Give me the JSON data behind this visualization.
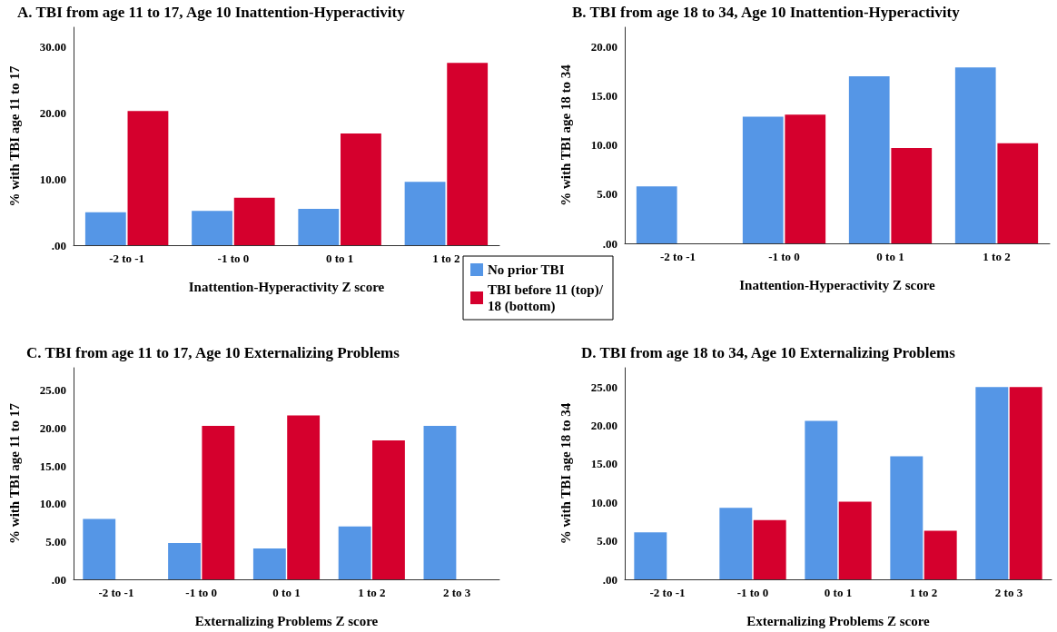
{
  "chart_data": [
    {
      "type": "bar",
      "title": "A. TBI from age 11 to 17, Age 10 Inattention-Hyperactivity",
      "xlabel": "Inattention-Hyperactivity Z score",
      "ylabel": "% with TBI age 11 to 17",
      "categories": [
        "-2 to -1",
        "-1 to 0",
        "0 to 1",
        "1 to 2"
      ],
      "series": [
        {
          "name": "No prior TBI",
          "color": "#5596e6",
          "values": [
            5.0,
            5.2,
            5.5,
            9.6
          ]
        },
        {
          "name": "TBI before 11 (top)/18 (bottom)",
          "color": "#d5002d",
          "values": [
            20.3,
            7.2,
            16.9,
            27.6
          ]
        }
      ],
      "ylim": [
        0,
        33
      ],
      "yticks": [
        {
          "value": 0,
          "label": ".00"
        },
        {
          "value": 10,
          "label": "10.00"
        },
        {
          "value": 20,
          "label": "20.00"
        },
        {
          "value": 30,
          "label": "30.00"
        }
      ],
      "grid": false,
      "legend": "bottom right"
    },
    {
      "type": "bar",
      "title": "B. TBI from age 18 to 34, Age 10 Inattention-Hyperactivity",
      "xlabel": "Inattention-Hyperactivity Z score",
      "ylabel": "% with TBI age 18 to 34",
      "categories": [
        "-2 to -1",
        "-1 to 0",
        "0 to 1",
        "1 to 2"
      ],
      "series": [
        {
          "color": "#5596e6",
          "values": [
            5.8,
            12.9,
            17.0,
            17.9
          ]
        },
        {
          "color": "#d5002d",
          "values": [
            null,
            13.1,
            9.7,
            10.2
          ]
        }
      ],
      "ylim": [
        0,
        22
      ],
      "yticks": [
        {
          "value": 0,
          "label": ".00"
        },
        {
          "value": 5,
          "label": "5.00"
        },
        {
          "value": 10,
          "label": "10.00"
        },
        {
          "value": 15,
          "label": "15.00"
        },
        {
          "value": 20,
          "label": "20.00"
        }
      ],
      "grid": false
    },
    {
      "type": "bar",
      "title": "C. TBI from age 11 to 17, Age 10 Externalizing Problems",
      "xlabel": "Externalizing Problems Z score",
      "ylabel": "% with TBI age 11 to 17",
      "categories": [
        "-2 to -1",
        "-1 to 0",
        "0 to 1",
        "1 to 2",
        "2 to 3"
      ],
      "series": [
        {
          "color": "#5596e6",
          "values": [
            8.0,
            4.8,
            4.1,
            7.0,
            20.3
          ]
        },
        {
          "color": "#d5002d",
          "values": [
            null,
            20.3,
            21.7,
            18.4,
            null
          ]
        }
      ],
      "ylim": [
        0,
        28
      ],
      "yticks": [
        {
          "value": 0,
          "label": ".00"
        },
        {
          "value": 5,
          "label": "5.00"
        },
        {
          "value": 10,
          "label": "10.00"
        },
        {
          "value": 15,
          "label": "15.00"
        },
        {
          "value": 20,
          "label": "20.00"
        },
        {
          "value": 25,
          "label": "25.00"
        }
      ],
      "grid": false
    },
    {
      "type": "bar",
      "title": "D. TBI from age 18 to 34, Age 10 Externalizing Problems",
      "xlabel": "Externalizing Problems Z score",
      "ylabel": "% with TBI age 18 to 34",
      "categories": [
        "-2 to -1",
        "-1 to 0",
        "0 to 1",
        "1 to 2",
        "2 to 3"
      ],
      "series": [
        {
          "color": "#5596e6",
          "values": [
            6.1,
            9.3,
            20.6,
            16.0,
            25.0
          ]
        },
        {
          "color": "#d5002d",
          "values": [
            null,
            7.7,
            10.1,
            6.3,
            25.0
          ]
        }
      ],
      "ylim": [
        0,
        27.5
      ],
      "yticks": [
        {
          "value": 0,
          "label": ".00"
        },
        {
          "value": 5,
          "label": "5.00"
        },
        {
          "value": 10,
          "label": "10.00"
        },
        {
          "value": 15,
          "label": "15.00"
        },
        {
          "value": 20,
          "label": "20.00"
        },
        {
          "value": 25,
          "label": "25.00"
        }
      ],
      "grid": false
    }
  ]
}
